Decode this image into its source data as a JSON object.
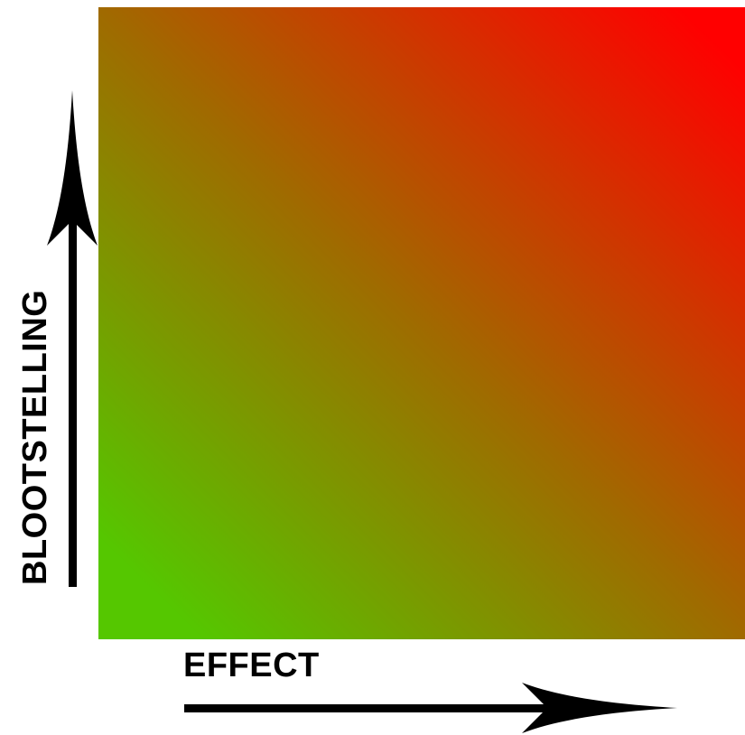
{
  "diagram": {
    "x_axis_label": "EFFECT",
    "y_axis_label": "BLOOTSTELLING",
    "gradient": {
      "low_corner_color": "#55c700",
      "mid_color": "#a06a00",
      "high_corner_color": "#ff0000",
      "low_corner": "bottom-left",
      "high_corner": "top-right"
    },
    "arrow_color": "#000000"
  }
}
